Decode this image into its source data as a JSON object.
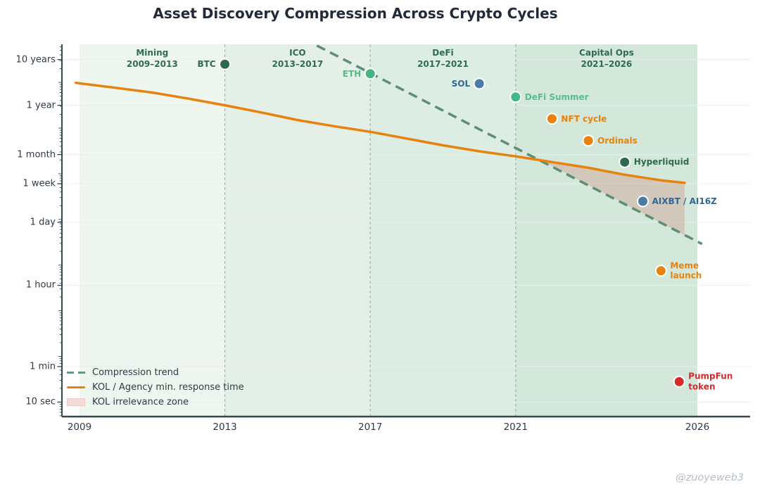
{
  "title": "Asset Discovery Compression Across Crypto Cycles",
  "watermark": "@zuoyeweb3",
  "legend": {
    "items": [
      {
        "label": "Compression trend",
        "sample": "dashed-line"
      },
      {
        "label": "KOL / Agency min. response time",
        "sample": "solid-line"
      },
      {
        "label": "KOL irrelevance zone",
        "sample": "patch"
      }
    ]
  },
  "colors": {
    "trend_line": "#5f8d75",
    "kol_curve": "#e8820c",
    "irrelevance_fill": "rgba(208,152,140,0.40)",
    "grid": "#e9edf0",
    "axis": "#37474f",
    "era_separator": "#a3b7aa",
    "era_label": "#2e6b52",
    "title": "#222a3a",
    "watermark": "#b7bdc9"
  },
  "chart_data": {
    "type": "scatter",
    "title": "Asset Discovery Compression Across Crypto Cycles",
    "x_axis": {
      "label": "",
      "ticks": [
        "2009",
        "2013",
        "2017",
        "2021",
        "2026"
      ],
      "tick_years": [
        2009,
        2013,
        2017,
        2021,
        2026
      ],
      "range_years": [
        2008.5,
        2027.5
      ]
    },
    "y_axis": {
      "label": "",
      "scale": "log-seconds",
      "ticks": [
        {
          "label": "10 years",
          "seconds": 315600000
        },
        {
          "label": "1 year",
          "seconds": 31560000
        },
        {
          "label": "1 month",
          "seconds": 2630000
        },
        {
          "label": "1 week",
          "seconds": 604800
        },
        {
          "label": "1 day",
          "seconds": 86400
        },
        {
          "label": "1 hour",
          "seconds": 3600
        },
        {
          "label": "1 min",
          "seconds": 60
        },
        {
          "label": "10 sec",
          "seconds": 10
        }
      ],
      "range_seconds": [
        5,
        700000000
      ]
    },
    "eras": [
      {
        "name": "Mining",
        "years": "2009–2013",
        "start": 2009,
        "end": 2013,
        "fill": "#eff6f0"
      },
      {
        "name": "ICO",
        "years": "2013–2017",
        "start": 2013,
        "end": 2017,
        "fill": "#e4f0e7"
      },
      {
        "name": "DeFi",
        "years": "2017–2021",
        "start": 2017,
        "end": 2021,
        "fill": "#dceee3"
      },
      {
        "name": "Capital Ops",
        "years": "2021–2026",
        "start": 2021,
        "end": 2026,
        "fill": "#d3e8db"
      }
    ],
    "points": [
      {
        "label": "BTC",
        "year": 2013.0,
        "seconds": 250000000,
        "color": "#2d6a4f",
        "label_color": "#2d6a4f",
        "side": "left"
      },
      {
        "label": "ETH",
        "year": 2017.0,
        "seconds": 155000000,
        "color": "#47b581",
        "label_color": "#58b987",
        "side": "left"
      },
      {
        "label": "SOL",
        "year": 2020.0,
        "seconds": 94000000,
        "color": "#4a7ba6",
        "label_color": "#2f6799",
        "side": "left"
      },
      {
        "label": "DeFi Summer",
        "year": 2021.0,
        "seconds": 48000000,
        "color": "#45ba88",
        "label_color": "#55bd8e",
        "side": "right"
      },
      {
        "label": "NFT cycle",
        "year": 2022.0,
        "seconds": 16000000,
        "color": "#e8820c",
        "label_color": "#e8820c",
        "side": "right"
      },
      {
        "label": "Ordinals",
        "year": 2023.0,
        "seconds": 5300000,
        "color": "#e8820c",
        "label_color": "#e8820c",
        "side": "right"
      },
      {
        "label": "Hyperliquid",
        "year": 2024.0,
        "seconds": 1800000,
        "color": "#2d6a4f",
        "label_color": "#2d6a4f",
        "side": "right"
      },
      {
        "label": "AIXBT / AI16Z",
        "year": 2024.5,
        "seconds": 250000,
        "color": "#4a7ba6",
        "label_color": "#2f6799",
        "side": "right"
      },
      {
        "label": "Meme\nlaunch",
        "year": 2025.0,
        "seconds": 7500,
        "color": "#e8820c",
        "label_color": "#e8820c",
        "side": "right"
      },
      {
        "label": "PumpFun\ntoken",
        "year": 2025.5,
        "seconds": 28,
        "color": "#d62b2b",
        "label_color": "#d62b2b",
        "side": "right"
      }
    ],
    "trend_line": {
      "label": "Compression trend",
      "points": [
        [
          2015.53,
          640000000
        ],
        [
          2026.13,
          29000
        ]
      ]
    },
    "kol_curve": {
      "label": "KOL / Agency min. response time",
      "points": [
        [
          2008.9,
          98000000
        ],
        [
          2010,
          76000000
        ],
        [
          2011,
          60000000
        ],
        [
          2012,
          44000000
        ],
        [
          2013,
          31600000
        ],
        [
          2014,
          22000000
        ],
        [
          2015,
          15000000
        ],
        [
          2016,
          11000000
        ],
        [
          2017,
          8300000
        ],
        [
          2018,
          5900000
        ],
        [
          2019,
          4200000
        ],
        [
          2020,
          3100000
        ],
        [
          2021,
          2400000
        ],
        [
          2022,
          1800000
        ],
        [
          2023,
          1350000
        ],
        [
          2024,
          950000
        ],
        [
          2025,
          720000
        ],
        [
          2025.65,
          630000
        ]
      ]
    },
    "irrelevance_zone": {
      "label": "KOL irrelevance zone",
      "polygon": [
        [
          2021.72,
          1930000
        ],
        [
          2022,
          1800000
        ],
        [
          2023,
          1350000
        ],
        [
          2024,
          950000
        ],
        [
          2025,
          720000
        ],
        [
          2025.65,
          630000
        ],
        [
          2025.65,
          45000
        ]
      ]
    }
  }
}
